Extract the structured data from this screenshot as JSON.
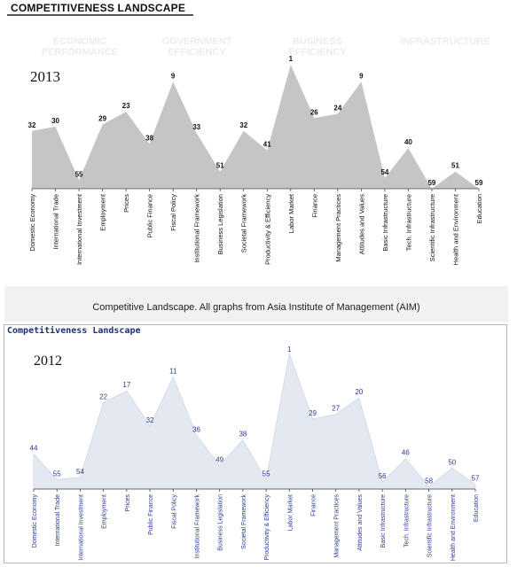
{
  "header": {
    "title": "COMPETITIVENESS LANDSCAPE",
    "caption": "Competitive Landscape. All graphs from Asia Institute of Management (AIM)"
  },
  "panel_2012": {
    "title": "Competitiveness Landscape"
  },
  "pillars": [
    {
      "line1": "ECONOMIC",
      "line2": "PERFORMANCE"
    },
    {
      "line1": "GOVERNMENT",
      "line2": "EFFICIENCY"
    },
    {
      "line1": "BUSINESS",
      "line2": "EFFICIENCY"
    },
    {
      "line1": "INFRASTRUCTURE",
      "line2": ""
    }
  ],
  "colors": {
    "area_2013": "#c5c5c5",
    "area_2012": "#e4e8f0",
    "label_2012": "#2b3a8f",
    "pillar_text": "#ececec"
  },
  "chart_data": [
    {
      "type": "area",
      "title": "2013",
      "categories": [
        "Domestic Economy",
        "International Trade",
        "International Investment",
        "Employment",
        "Prices",
        "Public Finance",
        "Fiscal Policy",
        "Institutional Framework",
        "Business Legislation",
        "Societal Framework",
        "Productivity & Efficiency",
        "Labor Market",
        "Finance",
        "Management Practices",
        "Attitudes and Values",
        "Basic Infrastructure",
        "Tech. Infrastructure",
        "Scientific Infrastructure",
        "Health and Environment",
        "Education"
      ],
      "values": [
        32,
        30,
        55,
        29,
        23,
        38,
        9,
        33,
        51,
        32,
        41,
        1,
        26,
        24,
        9,
        54,
        40,
        59,
        51,
        59
      ],
      "ylim": [
        1,
        59
      ],
      "y_reversed": true
    },
    {
      "type": "area",
      "title": "2012",
      "categories": [
        "Domestic Economy",
        "International Trade",
        "International Investment",
        "Employment",
        "Prices",
        "Public Finance",
        "Fiscal Policy",
        "Institutional Framework",
        "Business Legislation",
        "Societal Framework",
        "Productivity & Efficiency",
        "Labor Market",
        "Finance",
        "Management Practices",
        "Attitudes and Values",
        "Basic Infrastructure",
        "Tech. Infrastructure",
        "Scientific Infrastructure",
        "Health and Environment",
        "Education"
      ],
      "category_labels": [
        "Domestic Economy",
        "International Trade",
        "International Investment",
        "Employment",
        "Prices",
        "Public Finance",
        "Fiscal Policy",
        "Institutional Framework",
        "Business Legislation",
        "Societal Framework",
        "Productivity & Efficiency",
        "Labor Market",
        "Finance",
        "Management Practices",
        "Attitudes and Values",
        "Basic Infrastructure",
        "Tech. Infrastructure",
        "Scientific Infrastructure",
        "Health and Environment",
        "Education"
      ],
      "values": [
        44,
        55,
        54,
        22,
        17,
        32,
        11,
        36,
        49,
        38,
        55,
        1,
        29,
        27,
        20,
        56,
        46,
        58,
        50,
        57
      ],
      "ylim": [
        1,
        59
      ],
      "y_reversed": true
    }
  ]
}
